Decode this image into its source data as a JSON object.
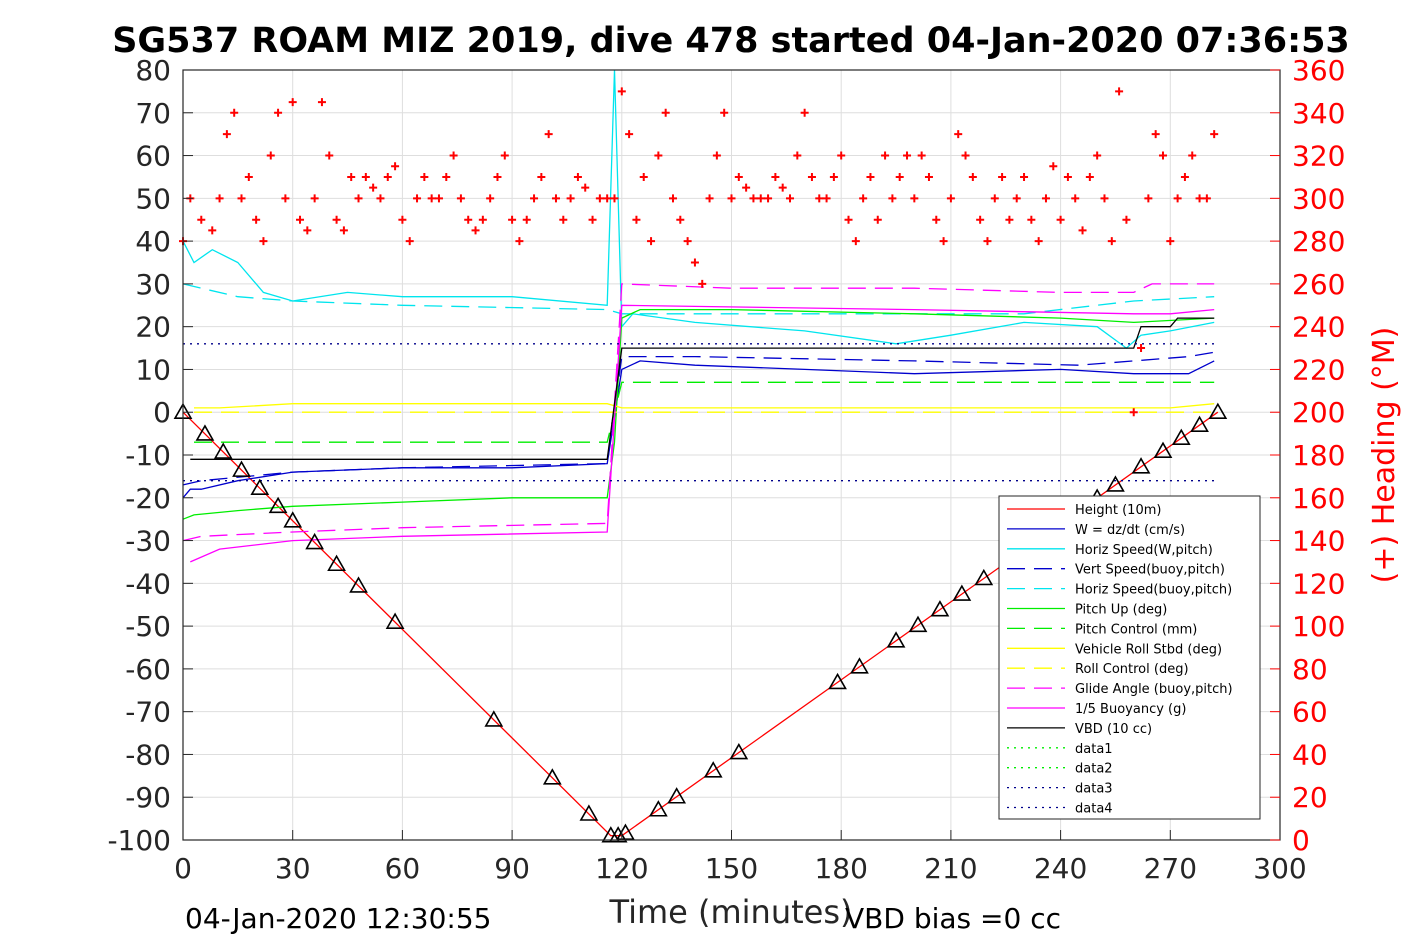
{
  "chart_data": {
    "type": "line",
    "title": "SG537 ROAM MIZ 2019, dive 478 started 04-Jan-2020 07:36:53",
    "xlabel": "Time (minutes)",
    "ylabel_left": "",
    "ylabel_right": "(+) Heading (°M)",
    "xlim": [
      0,
      300
    ],
    "ylim_left": [
      -100,
      80
    ],
    "ylim_right": [
      0,
      360
    ],
    "x_ticks": [
      0,
      30,
      60,
      90,
      120,
      150,
      180,
      210,
      240,
      270,
      300
    ],
    "y_ticks_left": [
      -100,
      -90,
      -80,
      -70,
      -60,
      -50,
      -40,
      -30,
      -20,
      -10,
      0,
      10,
      20,
      30,
      40,
      50,
      60,
      70,
      80
    ],
    "y_ticks_right": [
      0,
      20,
      40,
      60,
      80,
      100,
      120,
      140,
      160,
      180,
      200,
      220,
      240,
      260,
      280,
      300,
      320,
      340,
      360
    ],
    "grid": true,
    "legend_position": "bottom-right",
    "footer_left": "04-Jan-2020 12:30:55",
    "footer_right": "VBD bias =0 cc",
    "depth_markers": [
      0,
      6,
      11,
      16,
      21,
      26,
      30,
      36,
      42,
      48,
      58,
      85,
      101,
      111,
      117,
      119,
      121,
      130,
      135,
      145,
      152,
      179,
      185,
      195,
      201,
      207,
      213,
      219,
      250,
      255,
      262,
      268,
      273,
      278,
      283
    ],
    "series": [
      {
        "name": "Height (10m)",
        "color": "#ff0000",
        "style": "solid",
        "x": [
          0,
          117,
          120,
          283
        ],
        "y": [
          0,
          -99,
          -99,
          0
        ]
      },
      {
        "name": "W = dz/dt (cm/s)",
        "color": "#0000cd",
        "style": "solid",
        "x": [
          0,
          2,
          5,
          15,
          30,
          60,
          90,
          116,
          120,
          125,
          140,
          170,
          200,
          240,
          260,
          275,
          282
        ],
        "y": [
          -20,
          -18,
          -18,
          -16,
          -14,
          -13,
          -13,
          -12,
          10,
          12,
          11,
          10,
          9,
          10,
          9,
          9,
          12
        ]
      },
      {
        "name": "Horiz Speed(W,pitch)",
        "color": "#00e5ee",
        "style": "solid",
        "x": [
          0,
          3,
          8,
          15,
          22,
          30,
          45,
          60,
          90,
          116,
          118,
          120,
          123,
          140,
          170,
          195,
          210,
          230,
          250,
          258,
          262,
          270,
          282
        ],
        "y": [
          40,
          35,
          38,
          35,
          28,
          26,
          28,
          27,
          27,
          25,
          80,
          20,
          23,
          21,
          19,
          16,
          18,
          21,
          20,
          15,
          18,
          19,
          21
        ]
      },
      {
        "name": "Vert Speed(buoy,pitch)",
        "color": "#0000cd",
        "style": "dash",
        "x": [
          0,
          5,
          30,
          60,
          116,
          120,
          140,
          200,
          245,
          260,
          275,
          282
        ],
        "y": [
          -17,
          -16,
          -14,
          -13,
          -12,
          13,
          13,
          12,
          11,
          12,
          13,
          14
        ]
      },
      {
        "name": "Horiz Speed(buoy,pitch)",
        "color": "#00e5ee",
        "style": "dash",
        "x": [
          0,
          5,
          15,
          30,
          60,
          116,
          120,
          180,
          230,
          260,
          282
        ],
        "y": [
          30,
          29,
          27,
          26,
          25,
          24,
          23,
          23,
          23,
          26,
          27
        ]
      },
      {
        "name": "Pitch Up (deg)",
        "color": "#00ee00",
        "style": "solid",
        "x": [
          0,
          3,
          15,
          30,
          60,
          90,
          116,
          118,
          120,
          125,
          150,
          200,
          240,
          260,
          282
        ],
        "y": [
          -25,
          -24,
          -23,
          -22,
          -21,
          -20,
          -20,
          -7,
          22,
          24,
          24,
          23,
          22,
          21,
          22
        ]
      },
      {
        "name": "Pitch Control (mm)",
        "color": "#00ee00",
        "style": "dash",
        "x": [
          3,
          116,
          120,
          282
        ],
        "y": [
          -7,
          -7,
          7,
          7
        ]
      },
      {
        "name": "Vehicle Roll Stbd (deg)",
        "color": "#ffff00",
        "style": "solid",
        "x": [
          3,
          10,
          30,
          60,
          90,
          116,
          120,
          150,
          180,
          210,
          240,
          270,
          282
        ],
        "y": [
          1,
          1,
          2,
          2,
          2,
          2,
          1,
          1,
          1,
          1,
          1,
          1,
          2
        ]
      },
      {
        "name": "Roll Control (deg)",
        "color": "#ffff00",
        "style": "dash",
        "x": [
          3,
          282
        ],
        "y": [
          0,
          0
        ]
      },
      {
        "name": "Glide Angle (buoy,pitch)",
        "color": "#ff00ff",
        "style": "dash",
        "x": [
          0,
          5,
          30,
          60,
          116,
          120,
          150,
          200,
          240,
          260,
          265,
          282
        ],
        "y": [
          -30,
          -29,
          -28,
          -27,
          -26,
          30,
          29,
          29,
          28,
          28,
          30,
          30
        ]
      },
      {
        "name": "1/5 Buoyancy (g)",
        "color": "#ff00ff",
        "style": "solid",
        "x": [
          2,
          10,
          30,
          60,
          116,
          120,
          200,
          260,
          270,
          282
        ],
        "y": [
          -35,
          -32,
          -30,
          -29,
          -28,
          25,
          24,
          23,
          23,
          24
        ]
      },
      {
        "name": "VBD (10 cc)",
        "color": "#000000",
        "style": "solid",
        "x": [
          2,
          116,
          120,
          260,
          262,
          270,
          272,
          282
        ],
        "y": [
          -11,
          -11,
          15,
          15,
          20,
          20,
          22,
          22
        ]
      },
      {
        "name": "data1",
        "color": "#00ee00",
        "style": "dot",
        "x": [],
        "y": []
      },
      {
        "name": "data2",
        "color": "#00ee00",
        "style": "dot",
        "x": [],
        "y": []
      },
      {
        "name": "data3",
        "color": "#00008b",
        "style": "dot",
        "x": [
          0,
          282
        ],
        "y": [
          16,
          16
        ]
      },
      {
        "name": "data4",
        "color": "#00008b",
        "style": "dot",
        "x": [
          0,
          282
        ],
        "y": [
          -16,
          -16
        ]
      }
    ],
    "heading": {
      "name": "Heading",
      "color": "#ff0000",
      "marker": "+",
      "axis": "right",
      "x": [
        0,
        2,
        5,
        8,
        10,
        12,
        14,
        16,
        18,
        20,
        22,
        24,
        26,
        28,
        30,
        32,
        34,
        36,
        38,
        40,
        42,
        44,
        46,
        48,
        50,
        52,
        54,
        56,
        58,
        60,
        62,
        64,
        66,
        68,
        70,
        72,
        74,
        76,
        78,
        80,
        82,
        84,
        86,
        88,
        90,
        92,
        94,
        96,
        98,
        100,
        102,
        104,
        106,
        108,
        110,
        112,
        114,
        116,
        118,
        120,
        122,
        124,
        126,
        128,
        130,
        132,
        134,
        136,
        138,
        140,
        142,
        144,
        146,
        148,
        150,
        152,
        154,
        156,
        158,
        160,
        162,
        164,
        166,
        168,
        170,
        172,
        174,
        176,
        178,
        180,
        182,
        184,
        186,
        188,
        190,
        192,
        194,
        196,
        198,
        200,
        202,
        204,
        206,
        208,
        210,
        212,
        214,
        216,
        218,
        220,
        222,
        224,
        226,
        228,
        230,
        232,
        234,
        236,
        238,
        240,
        242,
        244,
        246,
        248,
        250,
        252,
        254,
        256,
        258,
        260,
        262,
        264,
        266,
        268,
        270,
        272,
        274,
        276,
        278,
        280,
        282
      ],
      "y": [
        280,
        300,
        290,
        285,
        300,
        330,
        340,
        300,
        310,
        290,
        280,
        320,
        340,
        300,
        345,
        290,
        285,
        300,
        345,
        320,
        290,
        285,
        310,
        300,
        310,
        305,
        300,
        310,
        315,
        290,
        280,
        300,
        310,
        300,
        300,
        310,
        320,
        300,
        290,
        285,
        290,
        300,
        310,
        320,
        290,
        280,
        290,
        300,
        310,
        330,
        300,
        290,
        300,
        310,
        305,
        290,
        300,
        300,
        300,
        350,
        330,
        290,
        310,
        280,
        320,
        340,
        300,
        290,
        280,
        270,
        260,
        300,
        320,
        340,
        300,
        310,
        305,
        300,
        300,
        300,
        310,
        305,
        300,
        320,
        340,
        310,
        300,
        300,
        310,
        320,
        290,
        280,
        300,
        310,
        290,
        320,
        300,
        310,
        320,
        300,
        320,
        310,
        290,
        280,
        300,
        330,
        320,
        310,
        290,
        280,
        300,
        310,
        290,
        300,
        310,
        290,
        280,
        300,
        315,
        290,
        310,
        300,
        285,
        310,
        320,
        300,
        280,
        350,
        290,
        200,
        230,
        300,
        330,
        320,
        280,
        300,
        310,
        320,
        300,
        300,
        330
      ]
    }
  }
}
